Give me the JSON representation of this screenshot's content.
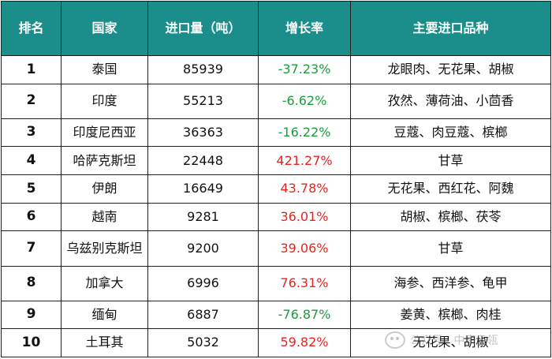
{
  "headers": [
    "排名",
    "国家",
    "进口量（吨）",
    "增长率",
    "主要进口品种"
  ],
  "rows": [
    {
      "rank": "1",
      "country": "泰国",
      "volume": "85939",
      "growth": "-37.23%",
      "trend": "down",
      "varieties": "龙眼肉、无花果、胡椒"
    },
    {
      "rank": "2",
      "country": "印度",
      "volume": "55213",
      "growth": "-6.62%",
      "trend": "down",
      "varieties": "孜然、薄荷油、小茴香"
    },
    {
      "rank": "3",
      "country": "印度尼西亚",
      "volume": "36363",
      "growth": "-16.22%",
      "trend": "down",
      "varieties": "豆蔻、肉豆蔻、槟榔"
    },
    {
      "rank": "4",
      "country": "哈萨克斯坦",
      "volume": "22448",
      "growth": "421.27%",
      "trend": "up",
      "varieties": "甘草"
    },
    {
      "rank": "5",
      "country": "伊朗",
      "volume": "16649",
      "growth": "43.78%",
      "trend": "up",
      "varieties": "无花果、西红花、阿魏"
    },
    {
      "rank": "6",
      "country": "越南",
      "volume": "9281",
      "growth": "36.01%",
      "trend": "up",
      "varieties": "胡椒、槟榔、茯苓"
    },
    {
      "rank": "7",
      "country": "乌兹别克斯坦",
      "volume": "9200",
      "growth": "39.06%",
      "trend": "up",
      "varieties": "甘草"
    },
    {
      "rank": "8",
      "country": "加拿大",
      "volume": "6996",
      "growth": "76.31%",
      "trend": "up",
      "varieties": "海参、西洋参、龟甲"
    },
    {
      "rank": "9",
      "country": "缅甸",
      "volume": "6887",
      "growth": "-76.87%",
      "trend": "down",
      "varieties": "姜黄、槟榔、肉桂"
    },
    {
      "rank": "10",
      "country": "土耳其",
      "volume": "5032",
      "growth": "59.82%",
      "trend": "up",
      "varieties": "无花果、胡椒"
    }
  ],
  "colors": {
    "header_bg": "#1b8e8b",
    "header_text": "#ffffff",
    "positive": "#e8231f",
    "negative": "#1a9c3c"
  },
  "watermark": {
    "text": "公众号 · 中康云瓴",
    "icon": "wechat-icon"
  }
}
